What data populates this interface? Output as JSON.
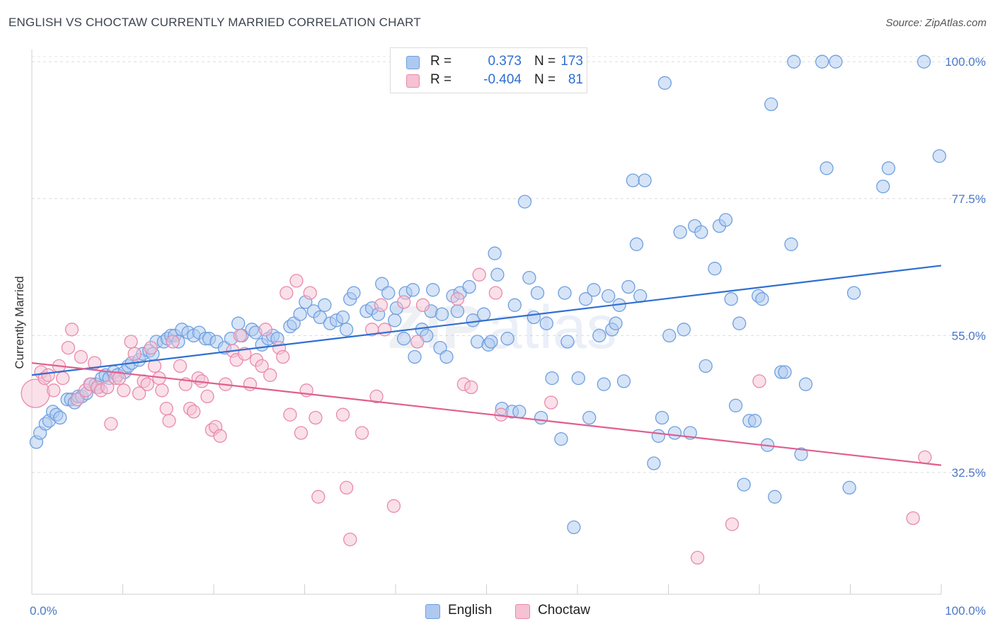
{
  "title": "ENGLISH VS CHOCTAW CURRENTLY MARRIED CORRELATION CHART",
  "source": "Source: ZipAtlas.com",
  "watermark": {
    "zip": "ZIP",
    "atlas": "atlas"
  },
  "legend": {
    "r_label": "R =",
    "n_label": "N =",
    "rows": [
      {
        "r": "0.373",
        "n": "173",
        "color": "#aec9f0",
        "border": "#6f9fe0"
      },
      {
        "r": "-0.404",
        "n": "81",
        "color": "#f6c1d3",
        "border": "#e88aab"
      }
    ]
  },
  "bottom_legend": [
    "English",
    "Choctaw"
  ],
  "chart_data": {
    "type": "scatter",
    "title": "ENGLISH VS CHOCTAW CURRENTLY MARRIED CORRELATION CHART",
    "xlabel": "",
    "ylabel": "Currently Married",
    "xlim": [
      0,
      100
    ],
    "ylim": [
      12.5,
      102
    ],
    "x_tick_labels": [
      "0.0%",
      "100.0%"
    ],
    "y_ticks": [
      32.5,
      55.0,
      77.5,
      100.0
    ],
    "y_tick_labels": [
      "32.5%",
      "55.0%",
      "77.5%",
      "100.0%"
    ],
    "grid": "horizontal dashed",
    "legend_position": "top-center",
    "series": [
      {
        "name": "English",
        "color": "#6f9fe0",
        "fill": "#aec9f0",
        "trend": {
          "x": [
            0,
            100
          ],
          "y": [
            48.5,
            66.5
          ],
          "color": "#2f6fd0"
        },
        "points": [
          [
            0.5,
            37.5
          ],
          [
            0.9,
            39
          ],
          [
            1.5,
            40.5
          ],
          [
            1.9,
            41
          ],
          [
            2.3,
            42.5
          ],
          [
            2.7,
            42
          ],
          [
            3.1,
            41.5
          ],
          [
            3.9,
            44.5
          ],
          [
            4.3,
            44.5
          ],
          [
            4.7,
            44
          ],
          [
            5.1,
            45
          ],
          [
            5.5,
            45
          ],
          [
            6.0,
            45.5
          ],
          [
            6.5,
            47
          ],
          [
            7.0,
            47
          ],
          [
            7.3,
            46.5
          ],
          [
            7.7,
            48
          ],
          [
            8.1,
            48.5
          ],
          [
            8.5,
            48
          ],
          [
            9.0,
            49
          ],
          [
            9.4,
            48.5
          ],
          [
            10.2,
            49
          ],
          [
            10.6,
            50
          ],
          [
            11.0,
            50.5
          ],
          [
            11.8,
            51
          ],
          [
            12.2,
            52
          ],
          [
            12.9,
            52.5
          ],
          [
            13.3,
            52
          ],
          [
            13.7,
            54
          ],
          [
            14.5,
            54
          ],
          [
            14.9,
            54.5
          ],
          [
            15.3,
            55
          ],
          [
            15.7,
            55
          ],
          [
            16.1,
            54
          ],
          [
            16.5,
            56
          ],
          [
            17.2,
            55.5
          ],
          [
            17.8,
            55
          ],
          [
            18.4,
            55.5
          ],
          [
            19.1,
            54.5
          ],
          [
            19.5,
            54.5
          ],
          [
            20.3,
            54
          ],
          [
            21.2,
            53
          ],
          [
            21.9,
            54.5
          ],
          [
            22.7,
            57
          ],
          [
            23.1,
            55
          ],
          [
            24.2,
            56
          ],
          [
            24.6,
            55.5
          ],
          [
            25.3,
            53.5
          ],
          [
            26.0,
            54.5
          ],
          [
            26.5,
            55
          ],
          [
            27.0,
            54.5
          ],
          [
            28.4,
            56.5
          ],
          [
            28.8,
            57
          ],
          [
            29.5,
            58.5
          ],
          [
            30.1,
            60.5
          ],
          [
            31.0,
            59
          ],
          [
            31.7,
            58
          ],
          [
            32.2,
            60
          ],
          [
            32.8,
            57
          ],
          [
            33.5,
            57.5
          ],
          [
            34.2,
            58
          ],
          [
            34.6,
            56
          ],
          [
            35.0,
            61
          ],
          [
            35.4,
            62
          ],
          [
            36.8,
            59
          ],
          [
            37.4,
            59.5
          ],
          [
            38.1,
            58.5
          ],
          [
            38.5,
            63.5
          ],
          [
            39.2,
            62
          ],
          [
            39.9,
            57.5
          ],
          [
            40.1,
            59.5
          ],
          [
            40.9,
            54.5
          ],
          [
            41.1,
            62
          ],
          [
            41.9,
            62.5
          ],
          [
            42.1,
            51.5
          ],
          [
            42.9,
            56
          ],
          [
            43.4,
            55
          ],
          [
            43.9,
            59
          ],
          [
            44.1,
            62.5
          ],
          [
            44.9,
            53
          ],
          [
            45.1,
            58.5
          ],
          [
            45.6,
            51.5
          ],
          [
            46.3,
            61.5
          ],
          [
            46.8,
            59
          ],
          [
            47.1,
            62
          ],
          [
            48.1,
            63
          ],
          [
            48.5,
            57.5
          ],
          [
            49.0,
            54
          ],
          [
            49.7,
            58.5
          ],
          [
            50.2,
            53.5
          ],
          [
            50.5,
            54
          ],
          [
            50.9,
            68.5
          ],
          [
            51.2,
            65
          ],
          [
            51.7,
            43
          ],
          [
            52.3,
            54.5
          ],
          [
            52.8,
            42.5
          ],
          [
            53.1,
            60
          ],
          [
            53.6,
            42.5
          ],
          [
            54.2,
            77
          ],
          [
            54.7,
            64.5
          ],
          [
            55.2,
            58
          ],
          [
            55.6,
            62
          ],
          [
            56.0,
            41.5
          ],
          [
            56.6,
            57
          ],
          [
            57.2,
            48
          ],
          [
            58.2,
            38
          ],
          [
            58.6,
            62
          ],
          [
            58.9,
            54
          ],
          [
            59.6,
            23.5
          ],
          [
            60.1,
            48
          ],
          [
            60.9,
            61
          ],
          [
            61.3,
            41.5
          ],
          [
            61.8,
            62.5
          ],
          [
            62.4,
            55
          ],
          [
            62.9,
            47
          ],
          [
            63.4,
            61.5
          ],
          [
            63.8,
            56
          ],
          [
            64.2,
            57
          ],
          [
            64.6,
            60
          ],
          [
            65.1,
            47.5
          ],
          [
            65.6,
            63
          ],
          [
            66.1,
            80.5
          ],
          [
            66.5,
            70
          ],
          [
            66.9,
            61.5
          ],
          [
            67.4,
            80.5
          ],
          [
            68.4,
            34
          ],
          [
            68.9,
            38.5
          ],
          [
            69.3,
            41.5
          ],
          [
            69.6,
            96.5
          ],
          [
            70.1,
            55
          ],
          [
            70.7,
            39
          ],
          [
            71.3,
            72
          ],
          [
            71.7,
            56
          ],
          [
            72.4,
            39
          ],
          [
            72.9,
            73
          ],
          [
            73.6,
            72
          ],
          [
            74.1,
            50
          ],
          [
            75.1,
            66
          ],
          [
            75.6,
            73
          ],
          [
            76.3,
            74
          ],
          [
            76.9,
            61
          ],
          [
            77.4,
            43.5
          ],
          [
            77.8,
            57
          ],
          [
            78.3,
            30.5
          ],
          [
            78.9,
            41
          ],
          [
            79.5,
            41
          ],
          [
            79.9,
            61.5
          ],
          [
            80.3,
            61
          ],
          [
            80.9,
            37
          ],
          [
            81.3,
            93
          ],
          [
            81.7,
            28.5
          ],
          [
            82.4,
            49
          ],
          [
            82.8,
            49
          ],
          [
            83.5,
            70
          ],
          [
            83.8,
            100
          ],
          [
            84.6,
            35.5
          ],
          [
            85.1,
            47
          ],
          [
            86.9,
            100
          ],
          [
            87.4,
            82.5
          ],
          [
            88.4,
            100
          ],
          [
            89.9,
            30
          ],
          [
            90.4,
            62
          ],
          [
            93.6,
            79.5
          ],
          [
            94.2,
            82.5
          ],
          [
            98.1,
            100
          ],
          [
            99.8,
            84.5
          ]
        ]
      },
      {
        "name": "Choctaw",
        "color": "#e88aab",
        "fill": "#f6c1d3",
        "trend": {
          "x": [
            0,
            100
          ],
          "y": [
            50.5,
            33.7
          ],
          "color": "#e05f8f"
        },
        "points": [
          [
            0.4,
            45.5
          ],
          [
            1.0,
            49
          ],
          [
            1.4,
            48
          ],
          [
            1.8,
            48.5
          ],
          [
            2.4,
            46
          ],
          [
            3.0,
            50
          ],
          [
            3.4,
            48
          ],
          [
            4.0,
            53
          ],
          [
            4.4,
            56
          ],
          [
            5.0,
            44.5
          ],
          [
            5.4,
            51.5
          ],
          [
            5.9,
            46
          ],
          [
            6.4,
            47
          ],
          [
            6.9,
            50.5
          ],
          [
            7.2,
            46.5
          ],
          [
            7.6,
            46
          ],
          [
            8.3,
            46.5
          ],
          [
            8.7,
            40.5
          ],
          [
            9.2,
            48
          ],
          [
            9.6,
            48
          ],
          [
            10.1,
            46
          ],
          [
            10.9,
            54
          ],
          [
            11.3,
            52
          ],
          [
            11.8,
            45.5
          ],
          [
            12.3,
            47.5
          ],
          [
            12.7,
            47
          ],
          [
            13.1,
            53
          ],
          [
            13.5,
            50
          ],
          [
            14.0,
            48
          ],
          [
            14.3,
            46
          ],
          [
            14.8,
            43
          ],
          [
            15.1,
            41
          ],
          [
            15.5,
            54
          ],
          [
            16.3,
            50
          ],
          [
            16.9,
            47
          ],
          [
            17.4,
            43
          ],
          [
            17.8,
            42.5
          ],
          [
            18.3,
            48
          ],
          [
            18.7,
            47.5
          ],
          [
            19.3,
            45
          ],
          [
            19.8,
            39.5
          ],
          [
            20.2,
            40
          ],
          [
            20.7,
            38.5
          ],
          [
            21.3,
            47
          ],
          [
            22.1,
            52.5
          ],
          [
            22.5,
            51
          ],
          [
            22.9,
            55
          ],
          [
            23.4,
            52
          ],
          [
            24.0,
            47
          ],
          [
            24.7,
            51
          ],
          [
            25.3,
            50
          ],
          [
            25.7,
            56
          ],
          [
            26.2,
            48.5
          ],
          [
            27.2,
            53
          ],
          [
            27.6,
            51.5
          ],
          [
            28.0,
            62
          ],
          [
            28.4,
            42
          ],
          [
            29.1,
            64
          ],
          [
            29.6,
            39
          ],
          [
            30.2,
            46
          ],
          [
            30.6,
            62
          ],
          [
            31.2,
            41.5
          ],
          [
            31.5,
            28.5
          ],
          [
            34.2,
            42
          ],
          [
            34.6,
            30
          ],
          [
            35.0,
            21.5
          ],
          [
            36.3,
            39
          ],
          [
            37.4,
            56
          ],
          [
            37.9,
            45
          ],
          [
            38.4,
            60
          ],
          [
            38.8,
            56
          ],
          [
            39.8,
            27
          ],
          [
            40.9,
            60.5
          ],
          [
            42.4,
            54
          ],
          [
            43.0,
            60
          ],
          [
            46.8,
            61
          ],
          [
            47.5,
            47
          ],
          [
            48.3,
            46.5
          ],
          [
            49.2,
            65
          ],
          [
            51.0,
            62
          ],
          [
            51.6,
            42
          ],
          [
            57.1,
            44
          ],
          [
            73.2,
            18.5
          ],
          [
            77.0,
            24
          ],
          [
            80.0,
            47.5
          ],
          [
            96.9,
            25
          ],
          [
            98.2,
            35
          ]
        ]
      }
    ]
  }
}
